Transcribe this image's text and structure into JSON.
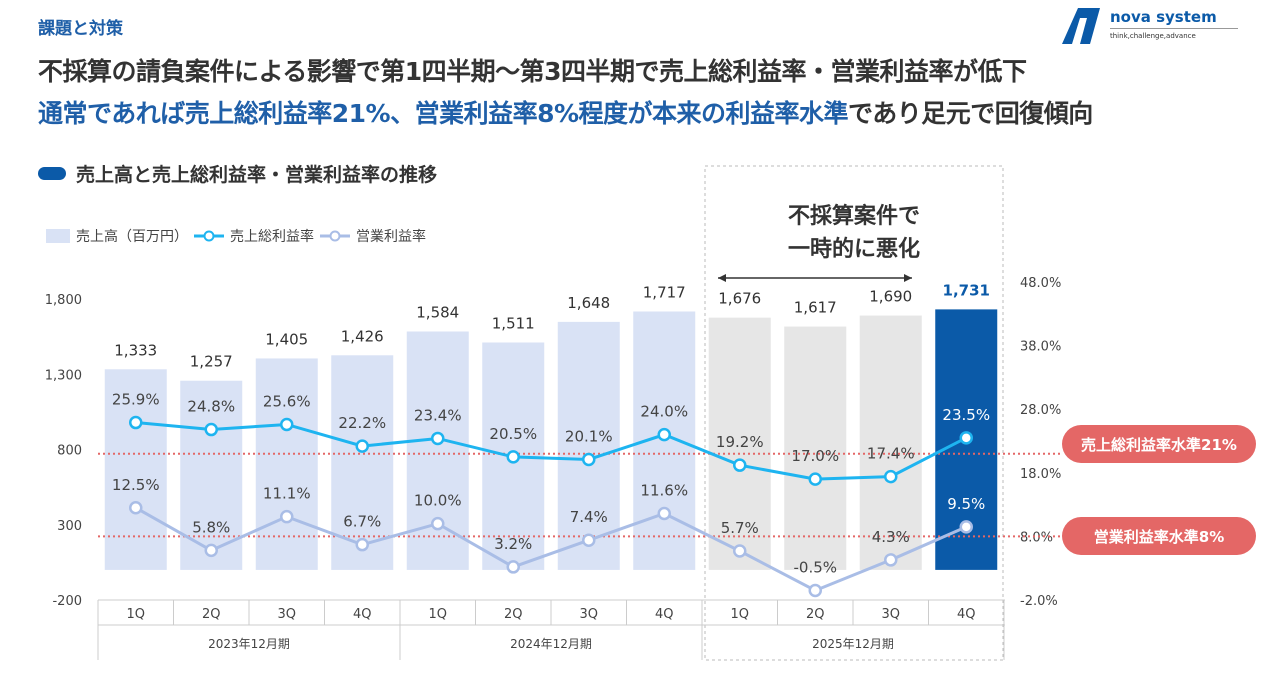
{
  "header": {
    "section": "課題と対策",
    "title": "不採算の請負案件による影響で第1四半期～第3四半期で売上総利益率・営業利益率が低下",
    "subtitle_highlight": "通常であれば売上総利益率21%、営業利益率8%程度が本来の利益率水準",
    "subtitle_rest": "であり足元で回復傾向"
  },
  "logo": {
    "name": "nova system",
    "tagline": "think,challenge,advance"
  },
  "chart_heading": "売上高と売上総利益率・営業利益率の推移",
  "annotation": {
    "line1": "不採算案件で",
    "line2": "一時的に悪化"
  },
  "badges": {
    "gross": "売上総利益率水準21%",
    "operating": "営業利益率水準8%"
  },
  "colors": {
    "bar": "#d9e2f5",
    "bar_gray": "#e6e6e6",
    "bar_highlight": "#0b5aa8",
    "gross": "#1eb4f0",
    "operating": "#a9bde6",
    "reference": "#e46766"
  },
  "chart_data": {
    "type": "bar+line",
    "categories": [
      "1Q",
      "2Q",
      "3Q",
      "4Q",
      "1Q",
      "2Q",
      "3Q",
      "4Q",
      "1Q",
      "2Q",
      "3Q",
      "4Q"
    ],
    "groups": [
      {
        "label": "2023年12月期",
        "span": 4
      },
      {
        "label": "2024年12月期",
        "span": 4
      },
      {
        "label": "2025年12月期",
        "span": 4
      }
    ],
    "series": [
      {
        "name": "売上高（百万円）",
        "type": "bar",
        "axis": "left",
        "values": [
          1333,
          1257,
          1405,
          1426,
          1584,
          1511,
          1648,
          1717,
          1676,
          1617,
          1690,
          1731
        ]
      },
      {
        "name": "売上総利益率",
        "type": "line",
        "axis": "right",
        "values": [
          25.9,
          24.8,
          25.6,
          22.2,
          23.4,
          20.5,
          20.1,
          24.0,
          19.2,
          17.0,
          17.4,
          23.5
        ]
      },
      {
        "name": "営業利益率",
        "type": "line",
        "axis": "right",
        "values": [
          12.5,
          5.8,
          11.1,
          6.7,
          10.0,
          3.2,
          7.4,
          11.6,
          5.7,
          -0.5,
          4.3,
          9.5
        ]
      }
    ],
    "left_axis": {
      "ticks": [
        "1,800",
        "1,300",
        "800",
        "300",
        "-200"
      ],
      "range": [
        -200,
        1800
      ]
    },
    "right_axis": {
      "ticks": [
        "48.0%",
        "38.0%",
        "28.0%",
        "18.0%",
        "8.0%",
        "-2.0%"
      ],
      "range": [
        -2,
        48
      ]
    },
    "reference_lines": [
      21,
      8
    ],
    "bar_labels": [
      "1,333",
      "1,257",
      "1,405",
      "1,426",
      "1,584",
      "1,511",
      "1,648",
      "1,717",
      "1,676",
      "1,617",
      "1,690",
      "1,731"
    ],
    "legend": "top-left"
  }
}
